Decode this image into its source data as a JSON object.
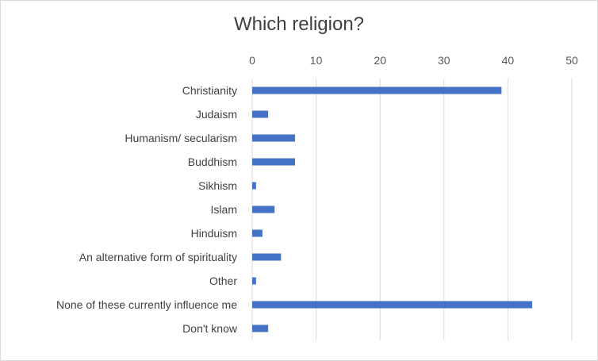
{
  "chart_data": {
    "type": "bar",
    "orientation": "horizontal",
    "title": "Which religion?",
    "xlabel": "",
    "ylabel": "",
    "categories": [
      "Christianity",
      "Judaism",
      "Humanism/ secularism",
      "Buddhism",
      "Sikhism",
      "Islam",
      "Hinduism",
      "An alternative form of spirituality",
      "Other",
      "None of these currently influence me",
      "Don't know"
    ],
    "values": [
      39,
      2.5,
      6.7,
      6.7,
      0.6,
      3.5,
      1.6,
      4.5,
      0.6,
      43.8,
      2.5
    ],
    "xlim": [
      0,
      50
    ],
    "ticks": [
      0,
      10,
      20,
      30,
      40,
      50
    ],
    "tick_labels": [
      "0",
      "10",
      "20",
      "30",
      "40",
      "50"
    ],
    "axis_position": "top",
    "grid": true,
    "legend": "none",
    "bar_color": "#4472c4"
  }
}
